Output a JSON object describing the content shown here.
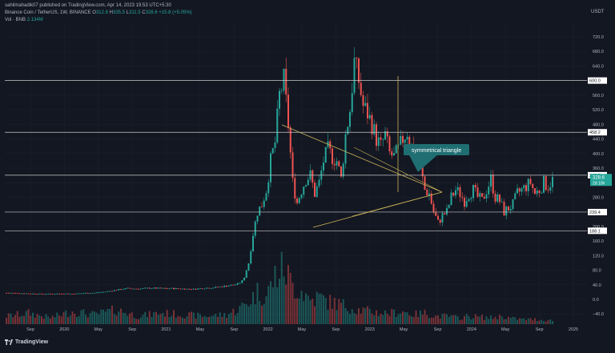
{
  "header": {
    "publisher": "sahilmahadik07 published on TradingView.com, Apr 14, 2023 19:53 UTC+5:30",
    "symbol": "Binance Coin / TetherUS, 1W, BINANCE",
    "ohlc": {
      "o_label": "O",
      "o": "312.8",
      "h_label": "H",
      "h": "335.5",
      "l_label": "L",
      "l": "311.5",
      "c_label": "C",
      "c": "328.6",
      "change": "+15.8 (+5.05%)"
    },
    "volume_label": "Vol · BNB",
    "volume_value": "2.134M"
  },
  "footer": {
    "brand": "TradingView",
    "logo": "tradingview-logo"
  },
  "colors": {
    "bg": "#131722",
    "up": "#26a69a",
    "down": "#ef5350",
    "trend": "#c9b458",
    "level": "#c8c8c8",
    "callout": "#1f6e72",
    "grid": "#1e222d"
  },
  "chart_data": {
    "type": "candlestick",
    "currency": "USDT",
    "y_ticks": [
      -40,
      0,
      40,
      80,
      120,
      160,
      200,
      240,
      280,
      320,
      360,
      400,
      440,
      480,
      520,
      560,
      600,
      640,
      680,
      720
    ],
    "y_tick_labels": [
      "−40.0",
      "0.0",
      "40.0",
      "80.0",
      "120.0",
      "160.0",
      "200.0",
      "240.0",
      "280.0",
      "320.0",
      "360.0",
      "400.0",
      "440.0",
      "480.0",
      "520.0",
      "560.0",
      "600.0",
      "640.0",
      "680.0",
      "720.0"
    ],
    "ylim": [
      -68,
      755
    ],
    "x_labels": [
      "Sep",
      "2020",
      "May",
      "Sep",
      "2021",
      "May",
      "Sep",
      "2022",
      "May",
      "Sep",
      "2023",
      "May",
      "Sep",
      "2024",
      "May",
      "Sep",
      "2025"
    ],
    "horizontal_levels": [
      {
        "label": "600.0",
        "value": 600
      },
      {
        "label": "458.2",
        "value": 458.2
      },
      {
        "label": "340.5",
        "value": 340.5
      },
      {
        "label": "239.4",
        "value": 239.4
      },
      {
        "label": "188.1",
        "value": 188.1
      }
    ],
    "last_price": {
      "label": "328.6",
      "value": 328.6,
      "countdown": "2d 10h"
    },
    "annotation": "symmetrical triangle",
    "price_path": [
      [
        0,
        18
      ],
      [
        10,
        17
      ],
      [
        20,
        16
      ],
      [
        30,
        15
      ],
      [
        40,
        15
      ],
      [
        50,
        16
      ],
      [
        60,
        15
      ],
      [
        70,
        17
      ],
      [
        80,
        18
      ],
      [
        90,
        21
      ],
      [
        100,
        26
      ],
      [
        110,
        30
      ],
      [
        120,
        29
      ],
      [
        130,
        31
      ],
      [
        140,
        30
      ],
      [
        150,
        30
      ],
      [
        160,
        29
      ],
      [
        170,
        28
      ],
      [
        180,
        31
      ],
      [
        190,
        33
      ],
      [
        200,
        37
      ],
      [
        210,
        42
      ],
      [
        215,
        52
      ],
      [
        220,
        100
      ],
      [
        224,
        180
      ],
      [
        228,
        240
      ],
      [
        232,
        260
      ],
      [
        236,
        300
      ],
      [
        240,
        380
      ],
      [
        244,
        430
      ],
      [
        248,
        560
      ],
      [
        252,
        600
      ],
      [
        256,
        480
      ],
      [
        260,
        320
      ],
      [
        264,
        265
      ],
      [
        268,
        300
      ],
      [
        272,
        330
      ],
      [
        276,
        340
      ],
      [
        280,
        290
      ],
      [
        284,
        320
      ],
      [
        288,
        380
      ],
      [
        292,
        410
      ],
      [
        296,
        390
      ],
      [
        300,
        380
      ],
      [
        304,
        330
      ],
      [
        308,
        450
      ],
      [
        312,
        520
      ],
      [
        316,
        650
      ],
      [
        320,
        600
      ],
      [
        324,
        530
      ],
      [
        328,
        510
      ],
      [
        332,
        480
      ],
      [
        336,
        440
      ],
      [
        340,
        420
      ],
      [
        344,
        450
      ],
      [
        348,
        400
      ],
      [
        352,
        390
      ],
      [
        356,
        410
      ],
      [
        360,
        440
      ],
      [
        364,
        460
      ],
      [
        368,
        420
      ],
      [
        372,
        380
      ],
      [
        376,
        360
      ],
      [
        380,
        300
      ],
      [
        384,
        290
      ],
      [
        388,
        240
      ],
      [
        392,
        210
      ],
      [
        396,
        230
      ],
      [
        400,
        240
      ],
      [
        404,
        280
      ],
      [
        408,
        300
      ],
      [
        412,
        290
      ],
      [
        416,
        270
      ],
      [
        420,
        290
      ],
      [
        424,
        300
      ],
      [
        428,
        280
      ],
      [
        432,
        270
      ],
      [
        436,
        300
      ],
      [
        440,
        330
      ],
      [
        444,
        280
      ],
      [
        448,
        270
      ],
      [
        452,
        240
      ],
      [
        456,
        250
      ],
      [
        460,
        260
      ],
      [
        464,
        290
      ],
      [
        468,
        300
      ],
      [
        472,
        310
      ],
      [
        476,
        320
      ],
      [
        480,
        290
      ],
      [
        484,
        300
      ],
      [
        488,
        320
      ],
      [
        492,
        310
      ],
      [
        496,
        328
      ]
    ],
    "volume_path": [
      [
        0,
        10
      ],
      [
        20,
        14
      ],
      [
        40,
        8
      ],
      [
        60,
        16
      ],
      [
        80,
        12
      ],
      [
        100,
        18
      ],
      [
        120,
        10
      ],
      [
        140,
        14
      ],
      [
        160,
        12
      ],
      [
        180,
        10
      ],
      [
        200,
        12
      ],
      [
        210,
        18
      ],
      [
        220,
        28
      ],
      [
        228,
        40
      ],
      [
        236,
        35
      ],
      [
        244,
        60
      ],
      [
        252,
        70
      ],
      [
        260,
        48
      ],
      [
        268,
        42
      ],
      [
        276,
        30
      ],
      [
        284,
        34
      ],
      [
        292,
        28
      ],
      [
        300,
        26
      ],
      [
        310,
        22
      ],
      [
        320,
        18
      ],
      [
        330,
        16
      ],
      [
        340,
        14
      ],
      [
        350,
        14
      ],
      [
        360,
        16
      ],
      [
        370,
        12
      ],
      [
        380,
        14
      ],
      [
        390,
        10
      ],
      [
        400,
        10
      ],
      [
        410,
        8
      ],
      [
        420,
        10
      ],
      [
        430,
        9
      ],
      [
        440,
        8
      ],
      [
        450,
        10
      ],
      [
        460,
        7
      ],
      [
        470,
        6
      ],
      [
        480,
        6
      ],
      [
        490,
        5
      ],
      [
        496,
        5
      ]
    ]
  }
}
